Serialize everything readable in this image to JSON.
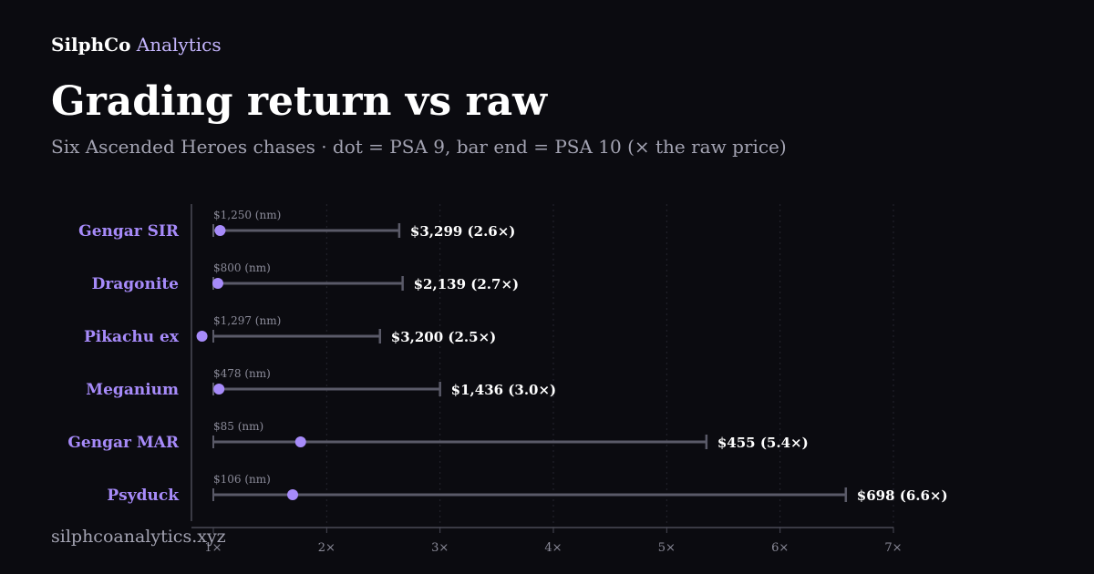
{
  "header": {
    "brand_name": "SilphCo",
    "brand_suffix": "Analytics",
    "title": "Grading return vs raw",
    "subtitle": "Six Ascended Heroes chases · dot = PSA 9, bar end = PSA 10 (× the raw price)"
  },
  "footer": {
    "site": "silphcoanalytics.xyz"
  },
  "colors": {
    "background": "#0b0b10",
    "accent": "#a78bfa",
    "bar": "#5a5a68",
    "dot": "#a78bfa",
    "grid": "#26262f"
  },
  "chart_data": {
    "type": "bar",
    "orientation": "horizontal",
    "title": "Grading return vs raw",
    "subtitle": "Six Ascended Heroes chases · dot = PSA 9, bar end = PSA 10 (× the raw price)",
    "xlabel": "",
    "ylabel": "",
    "xlim": [
      1,
      7
    ],
    "x_ticks": [
      1,
      2,
      3,
      4,
      5,
      6,
      7
    ],
    "x_tick_labels": [
      "1×",
      "2×",
      "3×",
      "4×",
      "5×",
      "6×",
      "7×"
    ],
    "grid": "vertical dotted",
    "categories": [
      "Gengar SIR",
      "Dragonite",
      "Pikachu ex",
      "Meganium",
      "Gengar MAR",
      "Psyduck"
    ],
    "raw_labels": [
      "$1,250 (nm)",
      "$800 (nm)",
      "$1,297 (nm)",
      "$478 (nm)",
      "$85 (nm)",
      "$106 (nm)"
    ],
    "psa9_multiple": [
      1.06,
      1.04,
      0.9,
      1.05,
      1.77,
      1.7
    ],
    "psa10_multiple": [
      2.64,
      2.67,
      2.47,
      3.0,
      5.35,
      6.58
    ],
    "psa10_labels": [
      "$3,299 (2.6×)",
      "$2,139 (2.7×)",
      "$3,200 (2.5×)",
      "$1,436 (3.0×)",
      "$455 (5.4×)",
      "$698 (6.6×)"
    ]
  }
}
